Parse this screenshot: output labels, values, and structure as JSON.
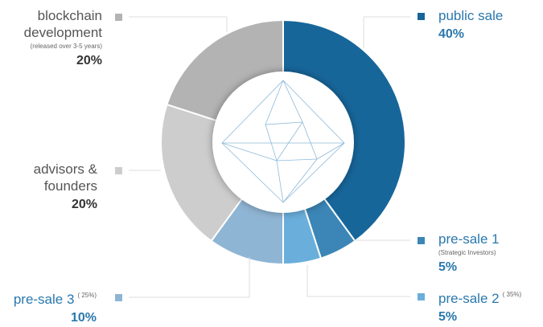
{
  "chart_data": {
    "type": "pie",
    "categories": [
      "public sale",
      "pre-sale 1",
      "pre-sale 2",
      "pre-sale 3",
      "advisors & founders",
      "blockchain development"
    ],
    "notes": [
      null,
      "(Strategic Investors)",
      "( 35%)",
      "( 25%)",
      null,
      "(released over 3-5 years)"
    ],
    "values": [
      40,
      5,
      5,
      10,
      20,
      20
    ],
    "value_labels": [
      "40%",
      "5%",
      "5%",
      "10%",
      "20%",
      "20%"
    ],
    "colors": [
      "#17669a",
      "#3b86b6",
      "#6aaedb",
      "#8fb5d4",
      "#cdcdcd",
      "#b3b3b3"
    ]
  }
}
